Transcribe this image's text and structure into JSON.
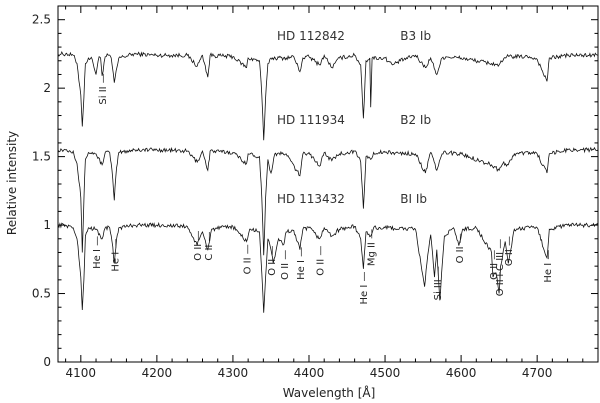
{
  "chart_data": {
    "type": "line",
    "title": "",
    "xlabel": "Wavelength [Å]",
    "ylabel": "Relative intensity",
    "xlim": [
      4070,
      4780
    ],
    "ylim": [
      0,
      2.6
    ],
    "x_ticks": [
      4100,
      4200,
      4300,
      4400,
      4500,
      4600,
      4700
    ],
    "y_ticks": [
      {
        "v": 0,
        "label": "0"
      },
      {
        "v": 0.5,
        "label": "0.5"
      },
      {
        "v": 1,
        "label": "1"
      },
      {
        "v": 1.5,
        "label": "1.5"
      },
      {
        "v": 2,
        "label": "2"
      },
      {
        "v": 2.5,
        "label": "2.5"
      }
    ],
    "grid": false,
    "series": [
      {
        "star": "HD 112842",
        "spectral_type": "B3 Ib",
        "offset": 2.25,
        "x": [
          4070,
          4080,
          4090,
          4095,
          4100,
          4102,
          4104,
          4106,
          4110,
          4115,
          4120,
          4124,
          4126,
          4128,
          4132,
          4136,
          4140,
          4144,
          4150,
          4170,
          4200,
          4240,
          4253,
          4260,
          4267,
          4270,
          4300,
          4318,
          4320,
          4335,
          4338,
          4340.5,
          4343,
          4346,
          4350,
          4370,
          4380,
          4388,
          4392,
          4400,
          4414,
          4420,
          4430,
          4440,
          4460,
          4468,
          4471.5,
          4475,
          4480,
          4481.2,
          4483,
          4500,
          4510,
          4520,
          4540,
          4553,
          4560,
          4568,
          4575,
          4580,
          4600,
          4640,
          4650,
          4655,
          4660,
          4690,
          4700,
          4713,
          4716,
          4740,
          4760,
          4780
        ],
        "values": [
          2.25,
          2.25,
          2.24,
          2.18,
          1.95,
          1.72,
          1.93,
          2.18,
          2.22,
          2.21,
          2.1,
          2.23,
          2.22,
          2.09,
          2.23,
          2.24,
          2.22,
          2.04,
          2.22,
          2.25,
          2.24,
          2.24,
          2.16,
          2.24,
          2.08,
          2.24,
          2.23,
          2.15,
          2.22,
          2.2,
          1.95,
          1.62,
          1.93,
          2.18,
          2.22,
          2.22,
          2.23,
          2.12,
          2.22,
          2.23,
          2.17,
          2.24,
          2.15,
          2.22,
          2.24,
          2.17,
          1.78,
          2.2,
          2.22,
          1.86,
          2.22,
          2.22,
          2.17,
          2.2,
          2.24,
          2.15,
          2.22,
          2.1,
          2.22,
          2.23,
          2.22,
          2.18,
          2.17,
          2.2,
          2.23,
          2.23,
          2.21,
          2.05,
          2.22,
          2.24,
          2.24,
          2.24
        ]
      },
      {
        "star": "HD 111934",
        "spectral_type": "B2 Ib",
        "offset": 1.55,
        "x": [
          4070,
          4080,
          4090,
          4095,
          4100,
          4102,
          4104,
          4106,
          4110,
          4120,
          4128,
          4132,
          4138,
          4141,
          4144,
          4147,
          4150,
          4170,
          4200,
          4240,
          4253,
          4260,
          4267,
          4270,
          4300,
          4318,
          4320,
          4335,
          4338,
          4340.5,
          4343,
          4346,
          4350,
          4355,
          4370,
          4388,
          4392,
          4400,
          4414,
          4420,
          4430,
          4440,
          4460,
          4468,
          4471.5,
          4475,
          4481.2,
          4485,
          4500,
          4540,
          4553,
          4560,
          4568,
          4575,
          4580,
          4600,
          4640,
          4650,
          4655,
          4662,
          4670,
          4690,
          4700,
          4713,
          4716,
          4740,
          4760,
          4780
        ],
        "values": [
          1.55,
          1.55,
          1.54,
          1.45,
          1.2,
          0.8,
          1.18,
          1.48,
          1.53,
          1.52,
          1.44,
          1.53,
          1.53,
          1.4,
          1.18,
          1.42,
          1.53,
          1.55,
          1.55,
          1.54,
          1.46,
          1.54,
          1.4,
          1.54,
          1.53,
          1.45,
          1.52,
          1.5,
          1.2,
          0.78,
          1.2,
          1.48,
          1.38,
          1.52,
          1.52,
          1.36,
          1.52,
          1.53,
          1.43,
          1.53,
          1.47,
          1.52,
          1.54,
          1.46,
          1.12,
          1.5,
          1.48,
          1.53,
          1.53,
          1.52,
          1.38,
          1.53,
          1.4,
          1.52,
          1.53,
          1.52,
          1.44,
          1.4,
          1.45,
          1.44,
          1.52,
          1.53,
          1.52,
          1.38,
          1.52,
          1.55,
          1.55,
          1.55
        ]
      },
      {
        "star": "HD 113432",
        "spectral_type": "BI Ib",
        "offset": 1.0,
        "x": [
          4070,
          4080,
          4090,
          4095,
          4100,
          4102,
          4104,
          4106,
          4110,
          4120,
          4128,
          4132,
          4138,
          4141,
          4144,
          4147,
          4150,
          4170,
          4200,
          4240,
          4253,
          4256,
          4260,
          4267,
          4272,
          4300,
          4318,
          4322,
          4335,
          4338,
          4340.5,
          4343,
          4346,
          4350,
          4353,
          4360,
          4367,
          4370,
          4380,
          4388,
          4392,
          4400,
          4414,
          4420,
          4430,
          4440,
          4460,
          4468,
          4471.5,
          4475,
          4481.2,
          4485,
          4500,
          4540,
          4552,
          4555,
          4560,
          4565,
          4568,
          4572,
          4578,
          4590,
          4597,
          4602,
          4620,
          4640,
          4642,
          4646,
          4650,
          4652,
          4658,
          4662,
          4670,
          4690,
          4700,
          4713,
          4716,
          4740,
          4760,
          4780
        ],
        "values": [
          1.0,
          1.0,
          0.98,
          0.9,
          0.62,
          0.38,
          0.6,
          0.92,
          0.98,
          0.97,
          0.9,
          0.98,
          0.98,
          0.88,
          0.72,
          0.9,
          0.98,
          1.0,
          1.0,
          0.99,
          0.85,
          0.9,
          0.95,
          0.82,
          0.97,
          0.99,
          0.88,
          0.97,
          0.95,
          0.65,
          0.36,
          0.62,
          0.9,
          0.82,
          0.72,
          0.9,
          0.86,
          0.95,
          0.96,
          0.82,
          0.97,
          0.98,
          0.9,
          0.98,
          0.92,
          0.97,
          0.99,
          0.9,
          0.68,
          0.95,
          0.92,
          0.98,
          0.98,
          0.97,
          0.55,
          0.72,
          0.93,
          0.62,
          0.82,
          0.45,
          0.92,
          0.98,
          0.85,
          0.97,
          0.98,
          0.8,
          0.62,
          0.65,
          0.5,
          0.7,
          0.88,
          0.72,
          0.97,
          0.98,
          0.98,
          0.76,
          0.97,
          1.0,
          1.0,
          1.0
        ]
      }
    ],
    "annotations": [
      {
        "text": "HD 112842",
        "x": 4358,
        "y": 2.35
      },
      {
        "text": "B3 Ib",
        "x": 4520,
        "y": 2.35
      },
      {
        "text": "HD 111934",
        "x": 4358,
        "y": 1.74
      },
      {
        "text": "B2 Ib",
        "x": 4520,
        "y": 1.74
      },
      {
        "text": "HD 113432",
        "x": 4358,
        "y": 1.16
      },
      {
        "text": "BI Ib",
        "x": 4520,
        "y": 1.16
      }
    ],
    "line_labels": [
      {
        "text": "Si II —",
        "x": 4128,
        "y": 1.88
      },
      {
        "text": "He I —",
        "x": 4120,
        "y": 0.68
      },
      {
        "text": "He I —",
        "x": 4144,
        "y": 0.66
      },
      {
        "text": "O II —",
        "x": 4253,
        "y": 0.74
      },
      {
        "text": "C II —",
        "x": 4267,
        "y": 0.74
      },
      {
        "text": "O II —",
        "x": 4318,
        "y": 0.64
      },
      {
        "text": "O II —",
        "x": 4350,
        "y": 0.63
      },
      {
        "text": "O II —",
        "x": 4367,
        "y": 0.6
      },
      {
        "text": "He I —",
        "x": 4388,
        "y": 0.6
      },
      {
        "text": "O II —",
        "x": 4414,
        "y": 0.63
      },
      {
        "text": "He I —",
        "x": 4471,
        "y": 0.42
      },
      {
        "text": "Mg II —",
        "x": 4481,
        "y": 0.7
      },
      {
        "text": "Si III —",
        "x": 4568,
        "y": 0.45
      },
      {
        "text": "O II —",
        "x": 4597,
        "y": 0.72
      },
      {
        "text": "O II —",
        "x": 4642,
        "y": 0.6
      },
      {
        "text": "O II+C III —",
        "x": 4650,
        "y": 0.48
      },
      {
        "text": "O II —",
        "x": 4662,
        "y": 0.7
      },
      {
        "text": "He I —",
        "x": 4713,
        "y": 0.58
      }
    ]
  }
}
